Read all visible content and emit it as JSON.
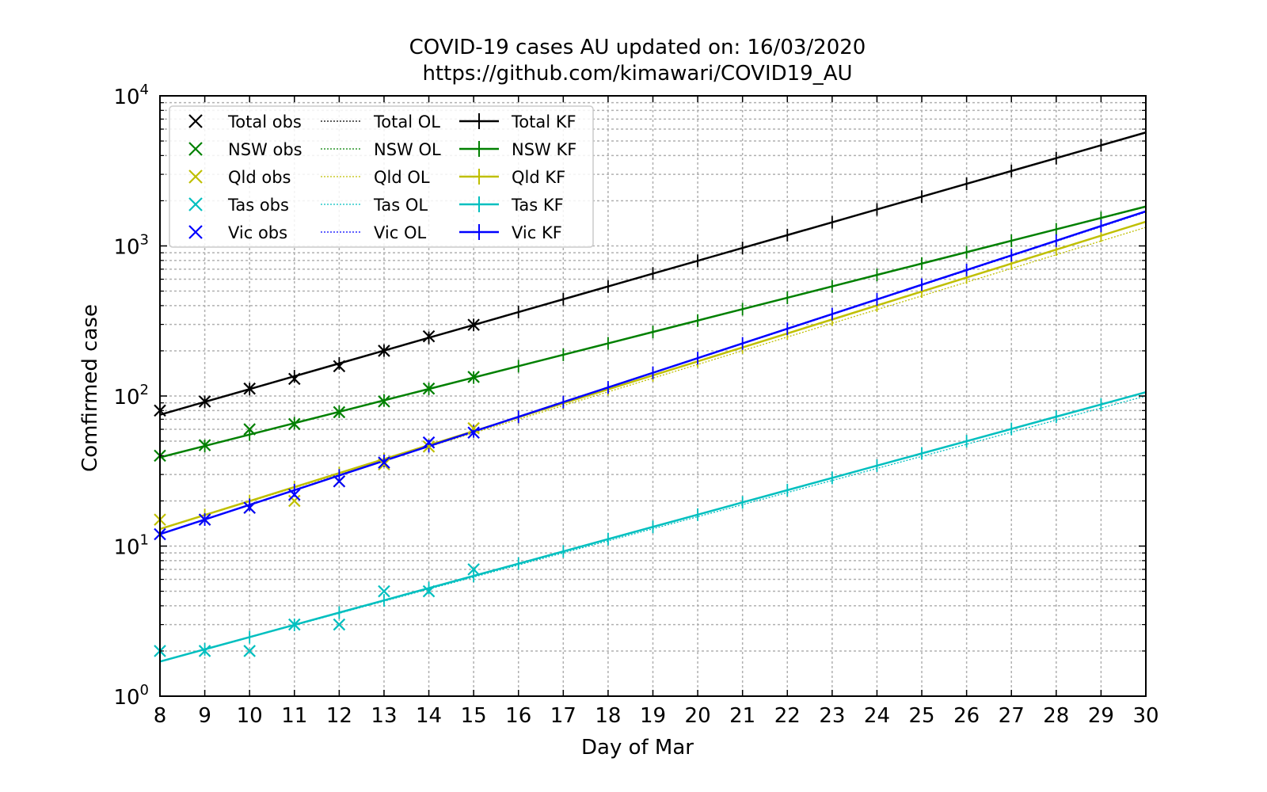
{
  "chart_data": {
    "type": "line",
    "title": "COVID-19 cases AU updated on: 16/03/2020",
    "subtitle": "https://github.com/kimawari/COVID19_AU",
    "xlabel": "Day of Mar",
    "ylabel": "Comfirmed case",
    "xlim": [
      8,
      30
    ],
    "ylim": [
      1,
      10000
    ],
    "yscale": "log",
    "grid": true,
    "legend_position": "top-left",
    "x_ticks": [
      "8",
      "9",
      "10",
      "11",
      "12",
      "13",
      "14",
      "15",
      "16",
      "17",
      "18",
      "19",
      "20",
      "21",
      "22",
      "23",
      "24",
      "25",
      "26",
      "27",
      "28",
      "29",
      "30"
    ],
    "y_ticks": [
      {
        "value": 1,
        "label": "10",
        "exp": "0"
      },
      {
        "value": 10,
        "label": "10",
        "exp": "1"
      },
      {
        "value": 100,
        "label": "10",
        "exp": "2"
      },
      {
        "value": 1000,
        "label": "10",
        "exp": "3"
      },
      {
        "value": 10000,
        "label": "10",
        "exp": "4"
      }
    ],
    "observations": [
      {
        "name": "Total obs",
        "color": "#000000",
        "x": [
          8,
          9,
          10,
          11,
          12,
          13,
          14,
          15
        ],
        "y": [
          80,
          92,
          112,
          130,
          158,
          200,
          250,
          298
        ]
      },
      {
        "name": "NSW obs",
        "color": "#008000",
        "x": [
          8,
          9,
          10,
          11,
          12,
          13,
          14,
          15
        ],
        "y": [
          40,
          47,
          60,
          65,
          78,
          92,
          112,
          134
        ]
      },
      {
        "name": "Qld obs",
        "color": "#bfbf00",
        "x": [
          8,
          9,
          10,
          11,
          12,
          13,
          14,
          15
        ],
        "y": [
          15,
          15,
          18,
          20,
          27,
          35,
          46,
          61
        ]
      },
      {
        "name": "Tas obs",
        "color": "#00bfbf",
        "x": [
          8,
          9,
          10,
          11,
          12,
          13,
          14,
          15
        ],
        "y": [
          2,
          2,
          2,
          3,
          3,
          5,
          5,
          7
        ]
      },
      {
        "name": "Vic obs",
        "color": "#0000ff",
        "x": [
          8,
          9,
          10,
          11,
          12,
          13,
          14,
          15
        ],
        "y": [
          12,
          15,
          18,
          22,
          27,
          36,
          49,
          57
        ]
      }
    ],
    "ol_series": [
      {
        "name": "Total OL",
        "color": "#000000",
        "start": 75,
        "end": 5700
      },
      {
        "name": "NSW OL",
        "color": "#008000",
        "start": 39,
        "end": 1820
      },
      {
        "name": "Qld OL",
        "color": "#bfbf00",
        "start": 13,
        "end": 1330
      },
      {
        "name": "Tas OL",
        "color": "#00bfbf",
        "start": 1.7,
        "end": 100
      },
      {
        "name": "Vic OL",
        "color": "#0000ff",
        "start": 12,
        "end": 1680
      }
    ],
    "kf_series": [
      {
        "name": "Total KF",
        "color": "#000000",
        "start": 75,
        "end": 5700
      },
      {
        "name": "NSW KF",
        "color": "#008000",
        "start": 39,
        "end": 1830
      },
      {
        "name": "Qld KF",
        "color": "#bfbf00",
        "start": 13,
        "end": 1450
      },
      {
        "name": "Tas KF",
        "color": "#00bfbf",
        "start": 1.7,
        "end": 106
      },
      {
        "name": "Vic KF",
        "color": "#0000ff",
        "start": 12,
        "end": 1700
      }
    ],
    "legend_columns": [
      [
        "Total obs",
        "NSW obs",
        "Qld obs",
        "Tas obs",
        "Vic obs"
      ],
      [
        "Total OL",
        "NSW OL",
        "Qld OL",
        "Tas OL",
        "Vic OL"
      ],
      [
        "Total KF",
        "NSW KF",
        "Qld KF",
        "Tas KF",
        "Vic KF"
      ]
    ]
  }
}
